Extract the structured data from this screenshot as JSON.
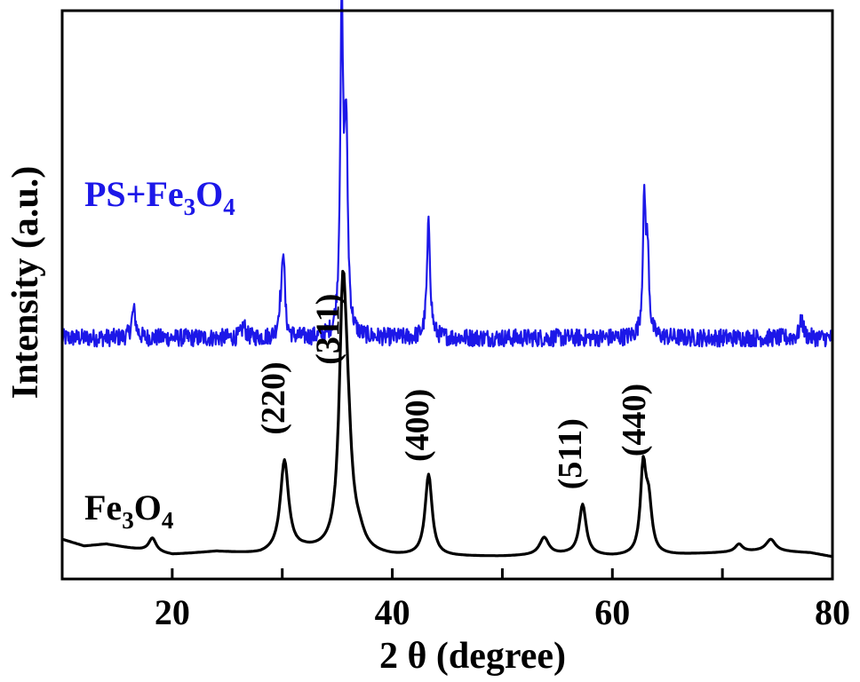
{
  "chart_data": {
    "type": "line",
    "xlabel": "2 θ (degree)",
    "ylabel": "Intensity (a.u.)",
    "xlim": [
      10,
      80
    ],
    "x_ticks": [
      "20",
      "40",
      "60",
      "80"
    ],
    "grid": false,
    "series": [
      {
        "name": "PS+Fe3O4",
        "label_parts": {
          "base": "PS+Fe",
          "sub1": "3",
          "mid": "O",
          "sub2": "4"
        },
        "color": "#1c17e8",
        "baseline": 0.97,
        "noise_amplitude": 0.035,
        "peaks": [
          {
            "x": 16.5,
            "height": 0.11,
            "width": 0.22
          },
          {
            "x": 26.5,
            "height": 0.05,
            "width": 0.2
          },
          {
            "x": 29.8,
            "height": 0.09,
            "width": 0.2
          },
          {
            "x": 30.1,
            "height": 0.33,
            "width": 0.15
          },
          {
            "x": 35.4,
            "height": 1.25,
            "width": 0.16
          },
          {
            "x": 35.8,
            "height": 0.78,
            "width": 0.18
          },
          {
            "x": 43.3,
            "height": 0.45,
            "width": 0.18
          },
          {
            "x": 62.9,
            "height": 0.52,
            "width": 0.16
          },
          {
            "x": 63.2,
            "height": 0.3,
            "width": 0.16
          },
          {
            "x": 77.2,
            "height": 0.07,
            "width": 0.2
          }
        ]
      },
      {
        "name": "Fe3O4",
        "label_parts": {
          "base": "Fe",
          "sub1": "3",
          "mid": "O",
          "sub2": "4"
        },
        "color": "#000000",
        "baseline": 0.0,
        "baseline_points": [
          [
            10,
            0.09
          ],
          [
            12,
            0.055
          ],
          [
            14,
            0.065
          ],
          [
            16,
            0.045
          ],
          [
            20,
            0.01
          ],
          [
            24,
            0.025
          ],
          [
            28,
            0.01
          ],
          [
            32,
            0.03
          ],
          [
            40,
            0.0
          ],
          [
            50,
            0.0
          ],
          [
            56,
            0.01
          ],
          [
            60,
            0.0
          ],
          [
            66,
            0.01
          ],
          [
            70,
            0.02
          ],
          [
            74,
            0.03
          ],
          [
            78,
            0.02
          ],
          [
            80,
            0.0
          ]
        ],
        "peaks": [
          {
            "x": 18.2,
            "height": 0.07,
            "width": 0.4
          },
          {
            "x": 30.2,
            "height": 0.47,
            "width": 0.45
          },
          {
            "x": 35.5,
            "height": 1.14,
            "width": 0.38
          },
          {
            "x": 35.9,
            "height": 0.5,
            "width": 0.5
          },
          {
            "x": 37.0,
            "height": 0.06,
            "width": 0.6
          },
          {
            "x": 43.3,
            "height": 0.42,
            "width": 0.38
          },
          {
            "x": 53.8,
            "height": 0.09,
            "width": 0.5
          },
          {
            "x": 57.3,
            "height": 0.26,
            "width": 0.38
          },
          {
            "x": 62.8,
            "height": 0.43,
            "width": 0.3
          },
          {
            "x": 63.3,
            "height": 0.25,
            "width": 0.35
          },
          {
            "x": 71.5,
            "height": 0.04,
            "width": 0.4
          },
          {
            "x": 74.4,
            "height": 0.06,
            "width": 0.5
          }
        ]
      }
    ],
    "annotations": [
      {
        "text": "(220)",
        "x": 29.2,
        "series": "Fe3O4"
      },
      {
        "text": "(311)",
        "x": 34.2,
        "series": "Fe3O4"
      },
      {
        "text": "(400)",
        "x": 42.3,
        "series": "Fe3O4"
      },
      {
        "text": "(511)",
        "x": 56.2,
        "series": "Fe3O4"
      },
      {
        "text": "(440)",
        "x": 62.0,
        "series": "Fe3O4"
      }
    ]
  }
}
